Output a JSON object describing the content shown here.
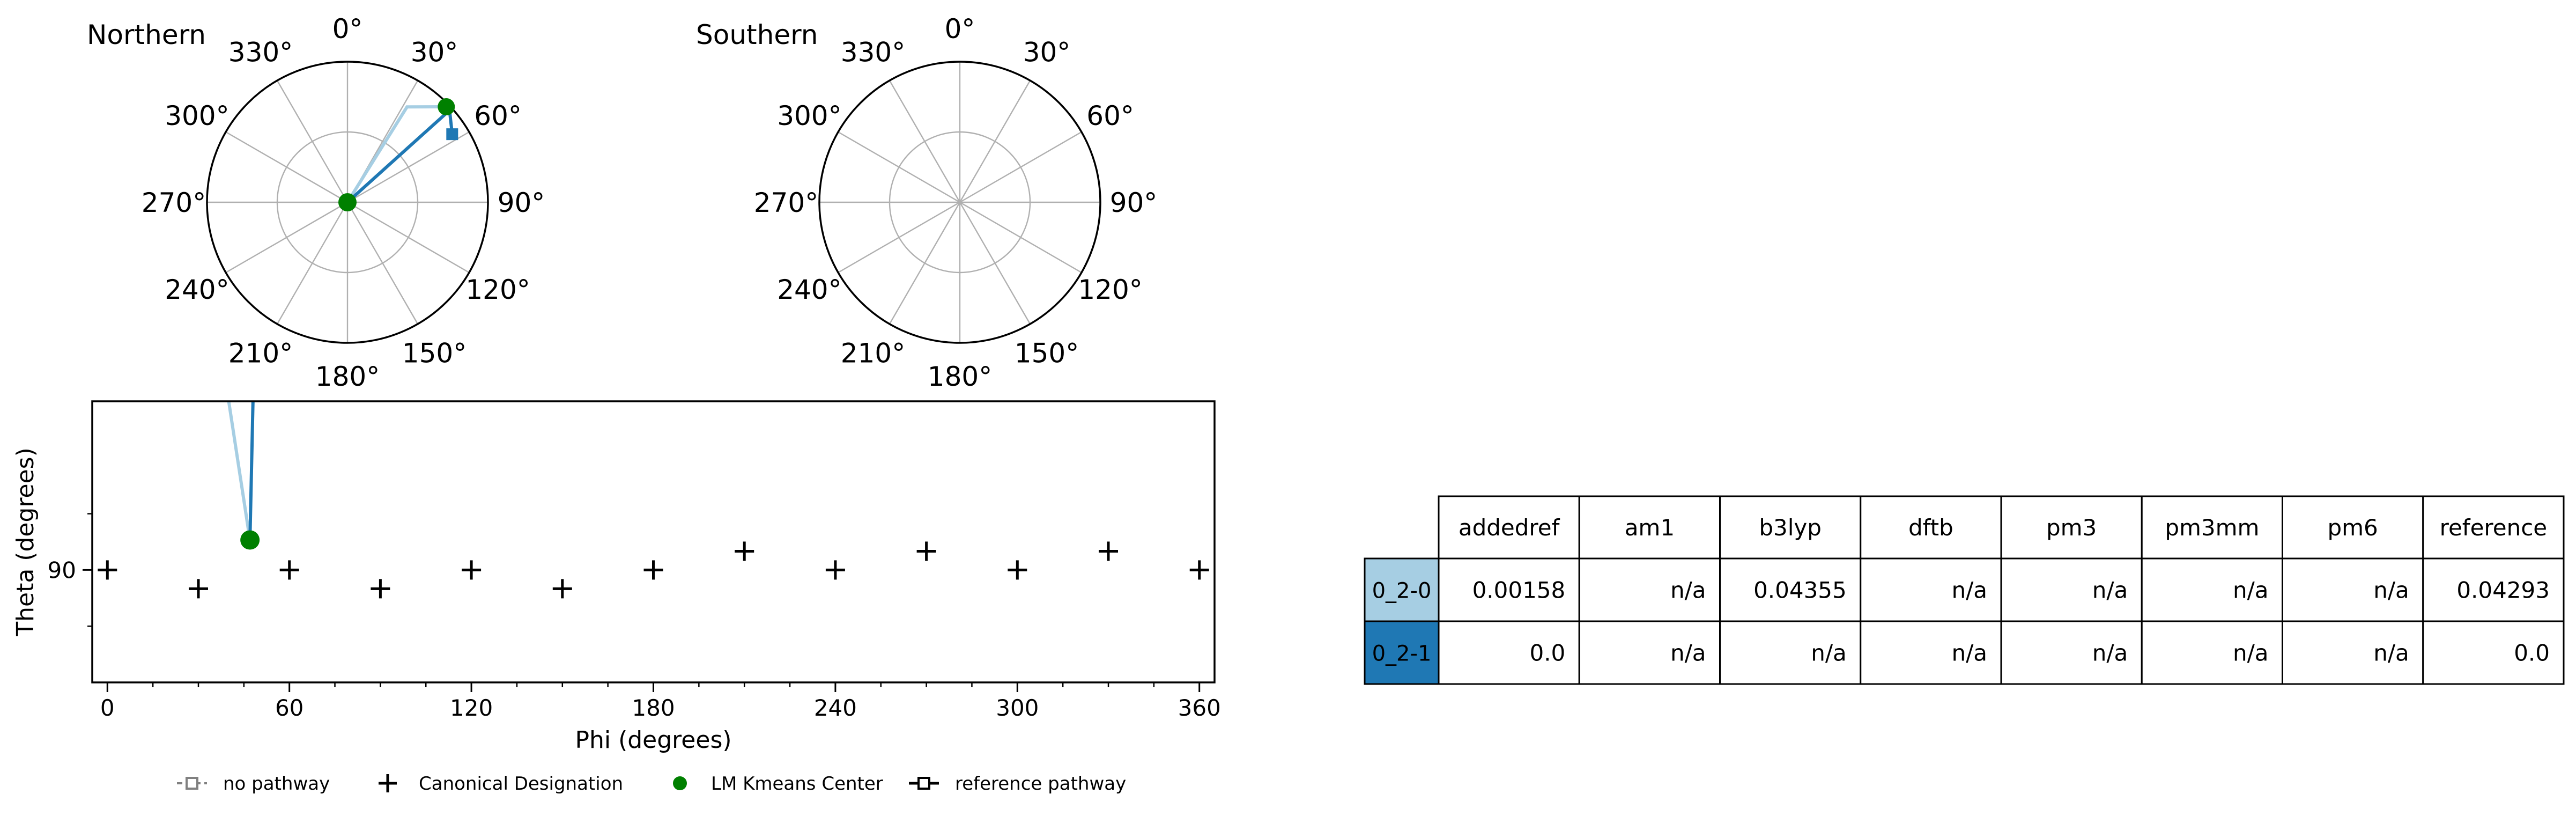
{
  "chart_data": [
    {
      "type": "scatter",
      "projection": "polar",
      "title": "Northern",
      "angle_tick_labels": [
        "0°",
        "30°",
        "60°",
        "90°",
        "120°",
        "150°",
        "180°",
        "210°",
        "240°",
        "270°",
        "300°",
        "330°"
      ],
      "theta_direction": "clockwise",
      "theta_zero_location": "top",
      "grid": true,
      "center_point": {
        "series": "LM Kmeans Center",
        "phi": 0,
        "theta": 0,
        "color": "#008000"
      },
      "paths": [
        {
          "name": "0_2-0",
          "color": "#a6cee3",
          "points": [
            {
              "phi": 0,
              "theta": 0
            },
            {
              "phi": 32,
              "theta": 72
            },
            {
              "phi": 46,
              "theta": 88
            }
          ]
        },
        {
          "name": "0_2-1",
          "color": "#1f78b4",
          "points": [
            {
              "phi": 0,
              "theta": 0
            },
            {
              "phi": 48,
              "theta": 88
            },
            {
              "phi": 57,
              "theta": 80
            }
          ]
        }
      ],
      "kmeans_center": {
        "phi": 46,
        "theta": 88,
        "color": "#008000"
      }
    },
    {
      "type": "scatter",
      "projection": "polar",
      "title": "Southern",
      "angle_tick_labels": [
        "0°",
        "30°",
        "60°",
        "90°",
        "120°",
        "150°",
        "180°",
        "210°",
        "240°",
        "270°",
        "300°",
        "330°"
      ],
      "theta_direction": "clockwise",
      "theta_zero_location": "top",
      "grid": true,
      "points": []
    },
    {
      "type": "scatter",
      "xlabel": "Phi (degrees)",
      "ylabel": "Theta (degrees)",
      "xlim": [
        -5,
        365
      ],
      "ylim": [
        60,
        135
      ],
      "xticks": [
        "0",
        "60",
        "120",
        "180",
        "240",
        "300",
        "360"
      ],
      "yticks": [
        "90"
      ],
      "series": [
        {
          "name": "Canonical Designation",
          "marker": "+",
          "color": "#000000",
          "points": [
            [
              0,
              90
            ],
            [
              30,
              85
            ],
            [
              60,
              90
            ],
            [
              90,
              85
            ],
            [
              120,
              90
            ],
            [
              150,
              85
            ],
            [
              180,
              90
            ],
            [
              210,
              95
            ],
            [
              240,
              90
            ],
            [
              270,
              95
            ],
            [
              300,
              90
            ],
            [
              330,
              95
            ],
            [
              360,
              90
            ]
          ]
        },
        {
          "name": "LM Kmeans Center",
          "marker": "o",
          "color": "#008000",
          "points": [
            [
              47,
              98
            ]
          ]
        }
      ],
      "paths": [
        {
          "name": "0_2-0",
          "color": "#a6cee3",
          "points": [
            [
              40,
              135
            ],
            [
              47,
              98
            ]
          ]
        },
        {
          "name": "0_2-1",
          "color": "#1f78b4",
          "points": [
            [
              48,
              135
            ],
            [
              47,
              98
            ]
          ]
        }
      ],
      "legend": {
        "placement": "bottom",
        "entries": [
          {
            "label": "no pathway",
            "style": "dashed-square",
            "color": "#808080"
          },
          {
            "label": "Canonical Designation",
            "style": "plus",
            "color": "#000000"
          },
          {
            "label": "LM Kmeans Center",
            "style": "dot",
            "color": "#008000"
          },
          {
            "label": "reference pathway",
            "style": "solid-square",
            "color": "#000000"
          }
        ]
      }
    },
    {
      "type": "table",
      "columns": [
        "addedref",
        "am1",
        "b3lyp",
        "dftb",
        "pm3",
        "pm3mm",
        "pm6",
        "reference"
      ],
      "rows": [
        {
          "label": "0_2-0",
          "color": "#a6cee3",
          "cells": [
            "0.00158",
            "n/a",
            "0.04355",
            "n/a",
            "n/a",
            "n/a",
            "n/a",
            "0.04293"
          ]
        },
        {
          "label": "0_2-1",
          "color": "#1f78b4",
          "cells": [
            "0.0",
            "n/a",
            "n/a",
            "n/a",
            "n/a",
            "n/a",
            "n/a",
            "0.0"
          ]
        }
      ]
    }
  ]
}
